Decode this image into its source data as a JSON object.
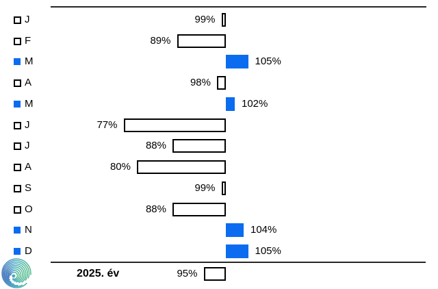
{
  "chart_data": {
    "type": "bar",
    "orientation": "horizontal",
    "baseline_pct": 100,
    "categories": [
      "J",
      "F",
      "M",
      "A",
      "M",
      "J",
      "J",
      "A",
      "S",
      "O",
      "N",
      "D"
    ],
    "values": [
      99,
      89,
      105,
      98,
      102,
      77,
      88,
      80,
      99,
      88,
      104,
      105
    ],
    "value_labels": [
      "99%",
      "89%",
      "105%",
      "98%",
      "102%",
      "77%",
      "88%",
      "80%",
      "99%",
      "88%",
      "104%",
      "105%"
    ],
    "summary_row": {
      "label": "2025. év",
      "value": 95,
      "value_label": "95%"
    },
    "xlim": [
      75,
      106
    ],
    "legend_note": "filled square = month above 100%, outlined square = month below 100%",
    "colors": {
      "above_100_fill": "#0b6cf0",
      "below_100_fill": "#ffffff",
      "bar_border": "#000000",
      "axis_line": "#262626",
      "text": "#000000"
    }
  },
  "logo": {
    "name": "swirl-logo",
    "colors": [
      "#4a7cc0",
      "#47aec2",
      "#55bb8e"
    ]
  }
}
